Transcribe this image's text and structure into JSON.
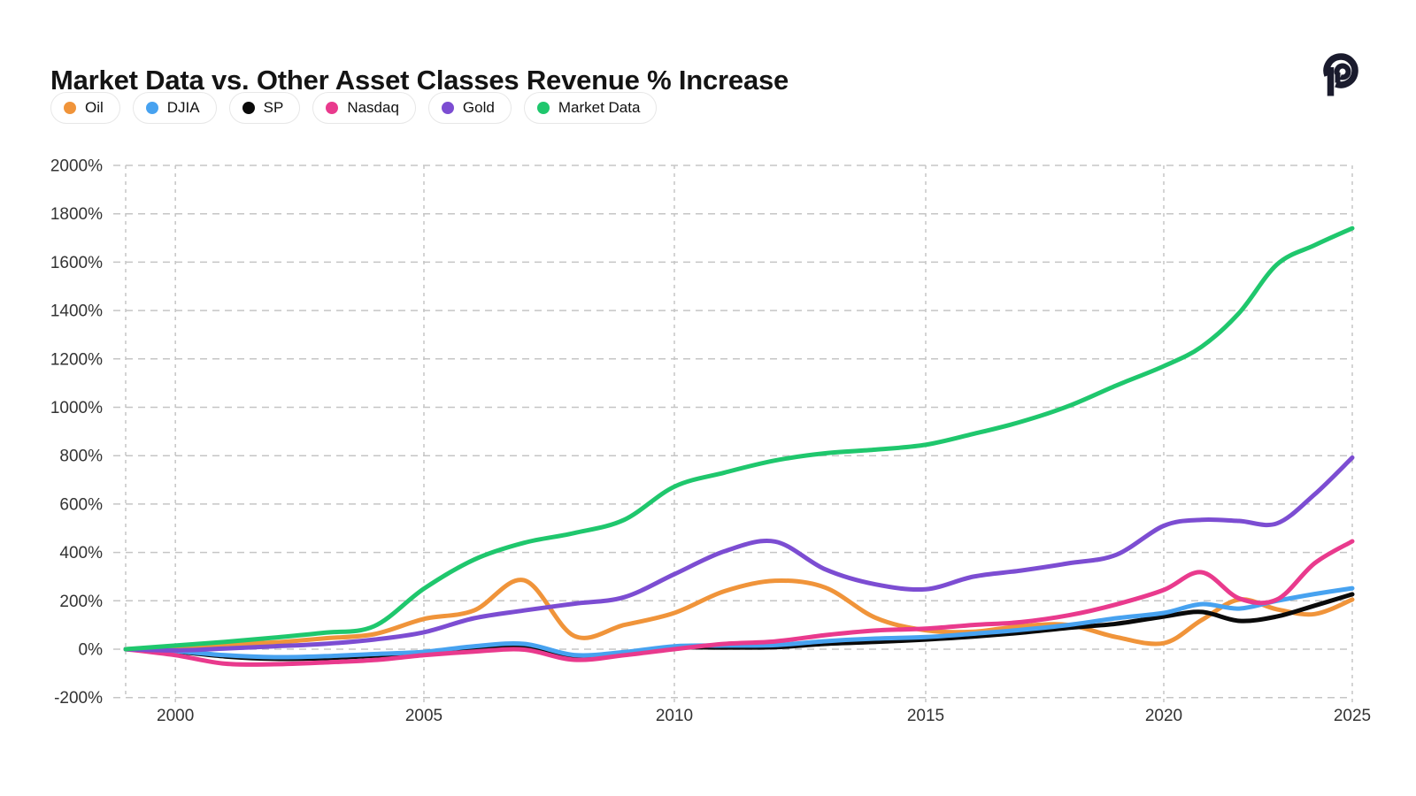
{
  "header": {
    "title": "Market Data vs. Other Asset Classes Revenue % Increase",
    "logo": "p-spiral-logo"
  },
  "chart_data": {
    "type": "line",
    "title": "Market Data vs. Other Asset Classes Revenue % Increase",
    "xlabel": "",
    "ylabel": "",
    "xlim": [
      1999,
      2025
    ],
    "ylim": [
      -200,
      2000
    ],
    "grid": "dashed",
    "legend_position": "top-left",
    "background": "#ffffff",
    "gridline_color": "#c5c5c5",
    "tick_color": "#333333",
    "x": [
      1999,
      2000,
      2001,
      2002,
      2003,
      2004,
      2005,
      2006,
      2007,
      2008,
      2009,
      2010,
      2011,
      2012,
      2013,
      2014,
      2015,
      2016,
      2017,
      2018,
      2019,
      2020,
      2021,
      2022,
      2023,
      2024,
      2025
    ],
    "xticks": [
      "2000",
      "2005",
      "2010",
      "2015",
      "2020",
      "2025"
    ],
    "yticks": [
      "2000%",
      "1800%",
      "1600%",
      "1400%",
      "1200%",
      "1000%",
      "800%",
      "600%",
      "400%",
      "200%",
      "0%",
      "-200%"
    ],
    "series": [
      {
        "name": "Oil",
        "color": "#F0943A",
        "values": [
          0,
          8,
          20,
          28,
          45,
          62,
          125,
          160,
          285,
          55,
          100,
          150,
          240,
          283,
          255,
          130,
          78,
          72,
          95,
          100,
          50,
          25,
          120,
          205,
          165,
          145,
          205
        ]
      },
      {
        "name": "DJIA",
        "color": "#47A2F0",
        "values": [
          0,
          -8,
          -25,
          -33,
          -29,
          -20,
          -11,
          12,
          22,
          -24,
          -12,
          12,
          15,
          17,
          33,
          44,
          50,
          64,
          80,
          100,
          128,
          150,
          186,
          168,
          200,
          228,
          252
        ]
      },
      {
        "name": "SP",
        "color": "#0A0A0A",
        "values": [
          0,
          -10,
          -30,
          -40,
          -37,
          -27,
          -18,
          2,
          8,
          -32,
          -22,
          5,
          7,
          8,
          22,
          30,
          40,
          52,
          68,
          88,
          105,
          135,
          154,
          117,
          135,
          180,
          227
        ]
      },
      {
        "name": "Nasdaq",
        "color": "#E93A8D",
        "values": [
          0,
          -25,
          -60,
          -62,
          -55,
          -45,
          -25,
          -10,
          -2,
          -44,
          -25,
          0,
          22,
          32,
          58,
          77,
          85,
          100,
          112,
          140,
          185,
          245,
          318,
          210,
          205,
          355,
          446
        ]
      },
      {
        "name": "Gold",
        "color": "#7C4DD2",
        "values": [
          0,
          -5,
          3,
          12,
          22,
          40,
          70,
          128,
          160,
          188,
          215,
          310,
          405,
          445,
          330,
          268,
          248,
          300,
          325,
          355,
          390,
          510,
          535,
          530,
          520,
          640,
          792
        ]
      },
      {
        "name": "Market Data",
        "color": "#1FC76D",
        "values": [
          0,
          15,
          30,
          48,
          68,
          95,
          250,
          370,
          440,
          480,
          535,
          672,
          730,
          780,
          810,
          825,
          845,
          890,
          940,
          1005,
          1090,
          1170,
          1250,
          1390,
          1590,
          1670,
          1740
        ]
      }
    ]
  }
}
